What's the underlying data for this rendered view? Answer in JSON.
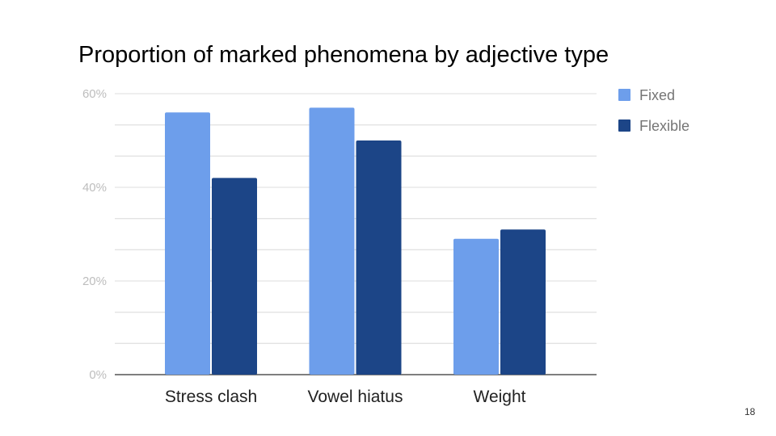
{
  "page_number": "18",
  "chart_data": {
    "type": "bar",
    "title": "Proportion of marked phenomena by adjective type",
    "categories": [
      "Stress clash",
      "Vowel hiatus",
      "Weight"
    ],
    "series": [
      {
        "name": "Fixed",
        "values": [
          56,
          57,
          29
        ],
        "color": "#6d9eeb"
      },
      {
        "name": "Flexible",
        "values": [
          42,
          50,
          31
        ],
        "color": "#1c4587"
      }
    ],
    "ylim": [
      0,
      60
    ],
    "yticks": [
      0,
      20,
      40,
      60
    ],
    "ytick_labels": [
      "0%",
      "20%",
      "40%",
      "60%"
    ],
    "xlabel": "",
    "ylabel": "",
    "grid": true,
    "legend": "right"
  }
}
